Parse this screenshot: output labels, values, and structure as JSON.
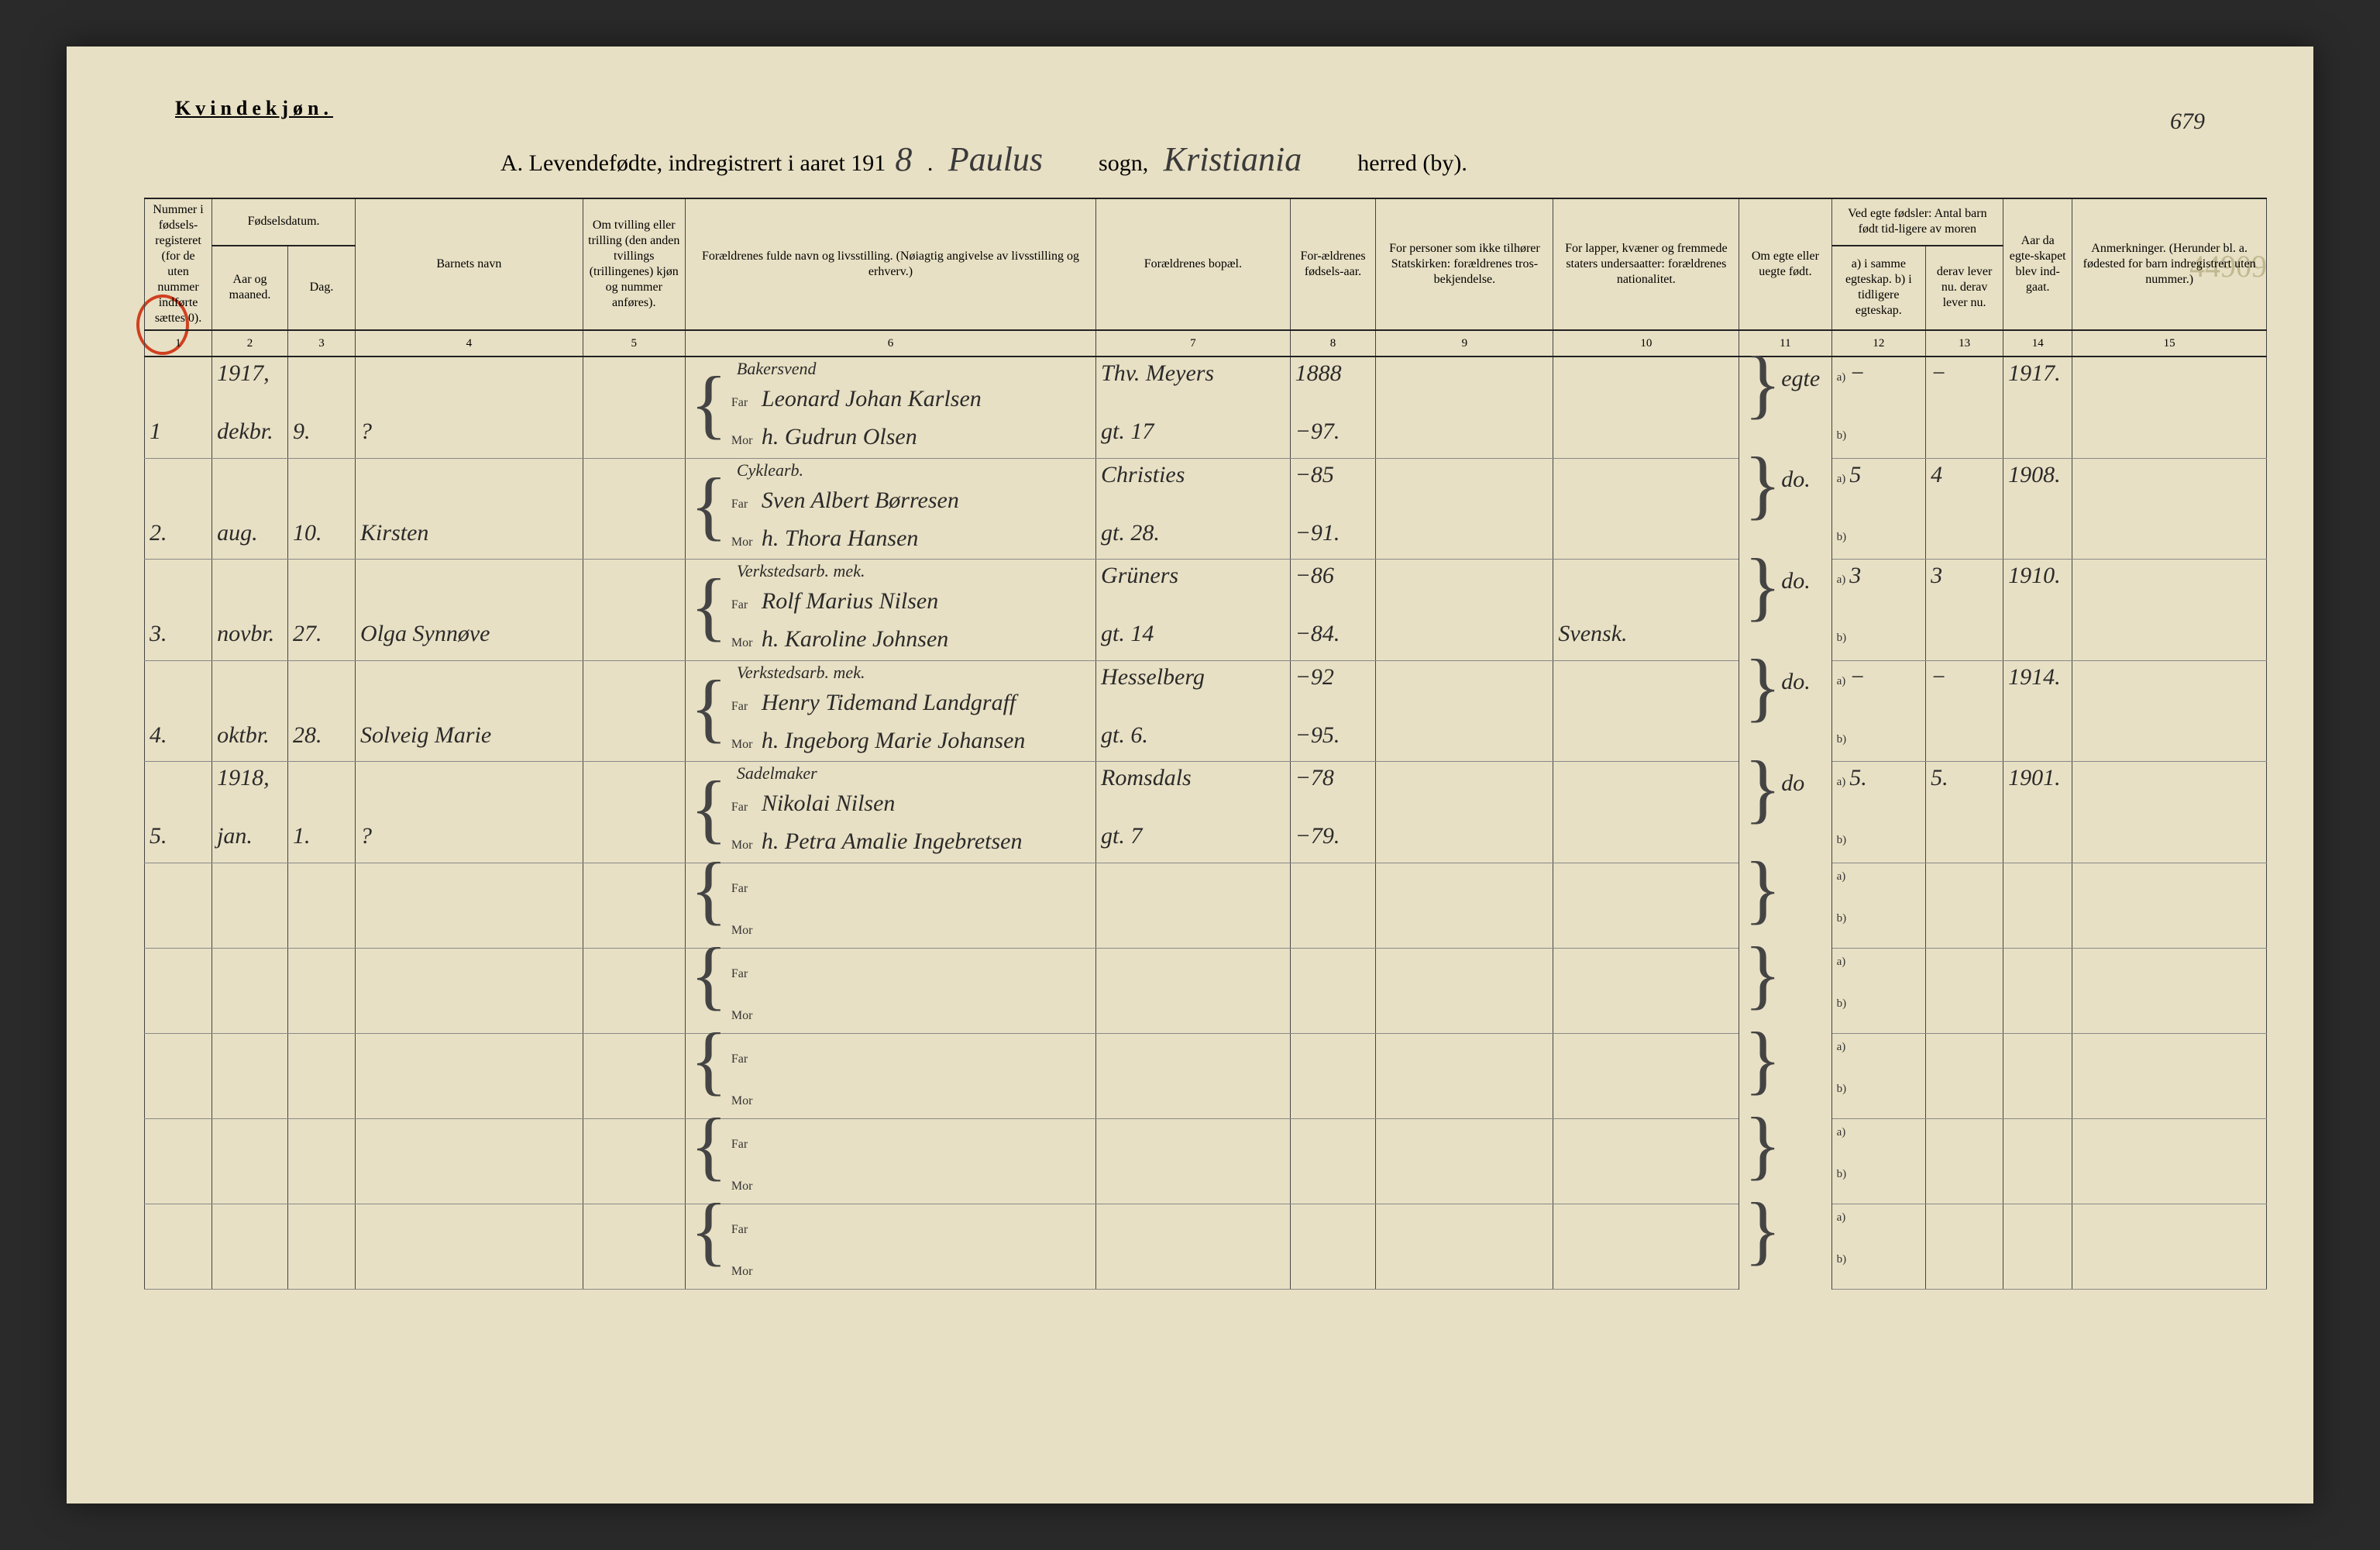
{
  "sex_label": "Kvindekjøn.",
  "title": {
    "prefix": "A. Levendefødte, indregistrert i aaret 191",
    "year_digit": "8",
    "sogn_hand": "Paulus",
    "sogn_label": "sogn,",
    "herred_hand": "Kristiania",
    "herred_label": "herred (by)."
  },
  "page_number": "679",
  "side_annotation": "44909",
  "headers": {
    "c1": "Nummer i fødsels-registeret (for de uten nummer indførte sættes 0).",
    "c2_top": "Fødselsdatum.",
    "c2a": "Aar og maaned.",
    "c2b": "Dag.",
    "c4": "Barnets navn",
    "c5": "Om tvilling eller trilling (den anden tvillings (trillingenes) kjøn og nummer anføres).",
    "c6": "Forældrenes fulde navn og livsstilling. (Nøiagtig angivelse av livsstilling og erhverv.)",
    "c7": "Forældrenes bopæl.",
    "c8": "For-ældrenes fødsels-aar.",
    "c9": "For personer som ikke tilhører Statskirken: forældrenes tros-bekjendelse.",
    "c10": "For lapper, kvæner og fremmede staters undersaatter: forældrenes nationalitet.",
    "c11": "Om egte eller uegte født.",
    "c12_top": "Ved egte fødsler: Antal barn født tid-ligere av moren",
    "c12a": "a) i samme egteskap.",
    "c12b": "b) i tidligere egteskap.",
    "c13a": "derav lever nu.",
    "c13b": "derav lever nu.",
    "c14": "Aar da egte-skapet blev ind-gaat.",
    "c15": "Anmerkninger. (Herunder bl. a. fødested for barn indregistrert uten nummer.)"
  },
  "colnums": [
    "1",
    "2",
    "3",
    "4",
    "5",
    "6",
    "7",
    "8",
    "9",
    "10",
    "11",
    "12",
    "13",
    "14",
    "15"
  ],
  "far_label": "Far",
  "mor_label": "Mor",
  "ab_a": "a)",
  "ab_b": "b)",
  "rows": [
    {
      "num": "1",
      "year_line": "1917,",
      "month": "dekbr.",
      "day": "9.",
      "child": "?",
      "occ_sup": "Bakersvend",
      "far": "Leonard Johan Karlsen",
      "mor": "h. Gudrun Olsen",
      "addr_far": "Thv. Meyers",
      "addr_mor": "gt. 17",
      "yr_far": "1888",
      "yr_mor": "−97.",
      "nat": "",
      "egte": "egte",
      "a": "−",
      "b": "",
      "derav": "−",
      "marr_yr": "1917."
    },
    {
      "num": "2.",
      "year_line": "",
      "month": "aug.",
      "day": "10.",
      "child": "Kirsten",
      "occ_sup": "Cyklearb.",
      "far": "Sven Albert Børresen",
      "mor": "h. Thora Hansen",
      "addr_far": "Christies",
      "addr_mor": "gt. 28.",
      "yr_far": "−85",
      "yr_mor": "−91.",
      "nat": "",
      "egte": "do.",
      "a": "5",
      "b": "",
      "derav": "4",
      "marr_yr": "1908."
    },
    {
      "num": "3.",
      "year_line": "",
      "month": "novbr.",
      "day": "27.",
      "child": "Olga Synnøve",
      "occ_sup": "Verkstedsarb. mek.",
      "far": "Rolf Marius Nilsen",
      "mor": "h. Karoline Johnsen",
      "addr_far": "Grüners",
      "addr_mor": "gt. 14",
      "yr_far": "−86",
      "yr_mor": "−84.",
      "nat": "Svensk.",
      "egte": "do.",
      "a": "3",
      "b": "",
      "derav": "3",
      "marr_yr": "1910."
    },
    {
      "num": "4.",
      "year_line": "",
      "month": "oktbr.",
      "day": "28.",
      "child": "Solveig Marie",
      "occ_sup": "Verkstedsarb. mek.",
      "far": "Henry Tidemand Landgraff",
      "mor": "h. Ingeborg Marie Johansen",
      "addr_far": "Hesselberg",
      "addr_mor": "gt. 6.",
      "yr_far": "−92",
      "yr_mor": "−95.",
      "nat": "",
      "egte": "do.",
      "a": "−",
      "b": "",
      "derav": "−",
      "marr_yr": "1914."
    },
    {
      "num": "5.",
      "year_line": "1918,",
      "month": "jan.",
      "day": "1.",
      "child": "?",
      "occ_sup": "Sadelmaker",
      "far": "Nikolai Nilsen",
      "mor": "h. Petra Amalie Ingebretsen",
      "addr_far": "Romsdals",
      "addr_mor": "gt. 7",
      "yr_far": "−78",
      "yr_mor": "−79.",
      "nat": "",
      "egte": "do",
      "a": "5.",
      "b": "",
      "derav": "5.",
      "marr_yr": "1901."
    }
  ],
  "empty_rows": 5,
  "colors": {
    "paper": "#e8e0c4",
    "ink": "#2a2a2a",
    "rule": "#444444",
    "red": "#d04020",
    "faint": "#c0b890"
  }
}
